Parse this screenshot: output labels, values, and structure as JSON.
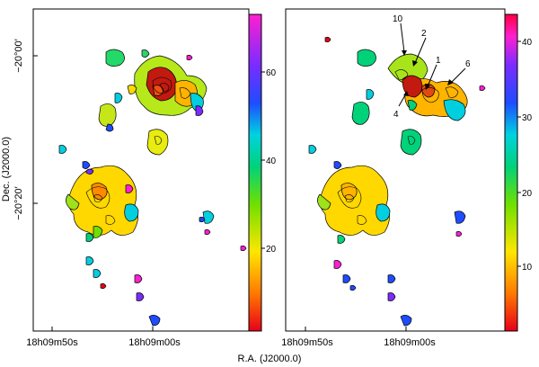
{
  "left_panel": {
    "y_ticks": [
      "−20°00′",
      "−20°20′"
    ],
    "x_ticks": [
      "18h09m50s",
      "18h09m00s"
    ],
    "colorbar_ticks": [
      "20",
      "40",
      "60"
    ]
  },
  "right_panel": {
    "x_ticks": [
      "18h09m50s",
      "18h09m00s"
    ],
    "colorbar_ticks": [
      "10",
      "20",
      "30",
      "40"
    ],
    "annotations": [
      "10",
      "2",
      "1",
      "6",
      "4"
    ]
  },
  "y_axis_label": "Dec. (J2000.0)",
  "x_axis_label": "R.A. (J2000.0)"
}
